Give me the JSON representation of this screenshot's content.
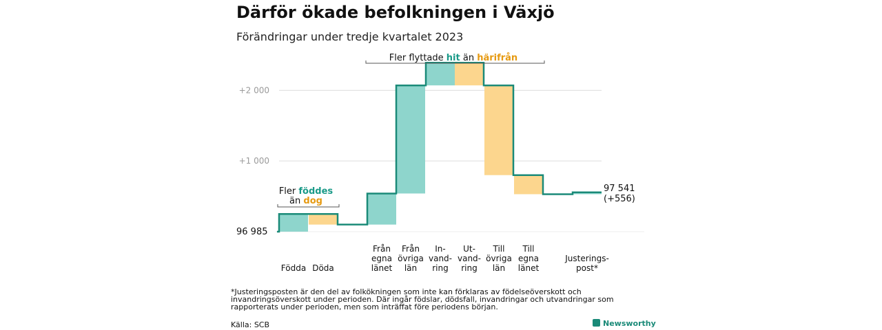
{
  "title": "Därför ökade befolkningen i Växjö",
  "subtitle": "Förändringar under tredje kvartalet 2023",
  "footnote": "*Justeringsposten är den del av folkökningen som inte kan förklaras av födelseöverskott och invandringsöverskott under perioden. Där ingår födslar, dödsfall, invandringar och utvandringar som rapporterats under perioden, men som inträffat före periodens början.",
  "source": "Källa: SCB",
  "brand": "Newsworthy",
  "colors": {
    "increase": "#8ed5cc",
    "decrease": "#fcd68e",
    "line": "#1a8a78",
    "hit_text": "#1a9a88",
    "away_text": "#e69a12",
    "grid": "#dddddd",
    "tick": "#9a9a9a"
  },
  "chart_data": {
    "type": "waterfall",
    "start_value": 96985,
    "start_label": "96  985",
    "end_label": "97 541",
    "end_change_label": "(+556)",
    "ylim": [
      -20,
      2500
    ],
    "yticks": [
      {
        "value": 1000,
        "label": "+1  000"
      },
      {
        "value": 2000,
        "label": "+2  000"
      }
    ],
    "steps": [
      {
        "label": [
          "Födda"
        ],
        "change": 250
      },
      {
        "label": [
          "Döda"
        ],
        "change": -150
      },
      {
        "label": [
          "Från",
          "egna",
          "länet"
        ],
        "change": 440
      },
      {
        "label": [
          "Från",
          "övriga",
          "län"
        ],
        "change": 1530
      },
      {
        "label": [
          "In-",
          "vand-",
          "ring"
        ],
        "change": 320
      },
      {
        "label": [
          "Ut-",
          "vand-",
          "ring"
        ],
        "change": -320
      },
      {
        "label": [
          "Till",
          "övriga",
          "län"
        ],
        "change": -1270
      },
      {
        "label": [
          "Till",
          "egna",
          "länet"
        ],
        "change": -270
      },
      {
        "label": [
          "Justerings-",
          "post*"
        ],
        "change": 26
      }
    ],
    "annotations": [
      {
        "parts": [
          "Fler ",
          "föddes",
          " än ",
          "dog"
        ]
      },
      {
        "parts": [
          "Fler flyttade ",
          "hit",
          " än ",
          "härifrån"
        ]
      }
    ]
  }
}
